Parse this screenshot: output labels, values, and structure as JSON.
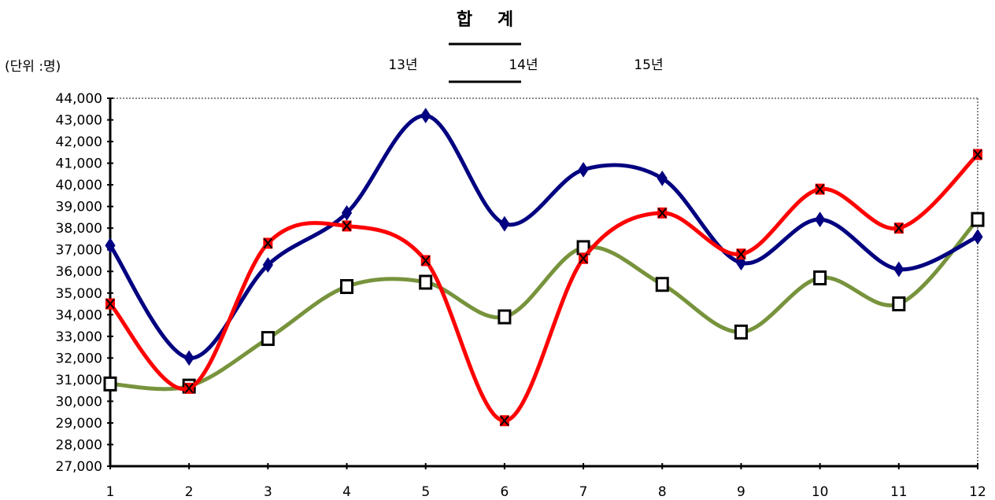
{
  "chart_data": {
    "type": "line",
    "title": "합 계",
    "unit_label": "(단위 :명)",
    "xlabel": "",
    "ylabel": "",
    "categories": [
      "1",
      "2",
      "3",
      "4",
      "5",
      "6",
      "7",
      "8",
      "9",
      "10",
      "11",
      "12"
    ],
    "ylim": [
      27000,
      44000
    ],
    "ystep": 1000,
    "grid": false,
    "legend_position": "top",
    "series": [
      {
        "name": "13년",
        "color": "#77933c",
        "marker": "square",
        "values": [
          30800,
          30700,
          32900,
          35300,
          35500,
          33900,
          37100,
          35400,
          33200,
          35700,
          34500,
          38400
        ]
      },
      {
        "name": "14년",
        "color": "#000080",
        "marker": "diamond",
        "values": [
          37200,
          32000,
          36300,
          38700,
          43200,
          38200,
          40700,
          40300,
          36400,
          38400,
          36100,
          37600
        ]
      },
      {
        "name": "15년",
        "color": "#ff0000",
        "marker": "x",
        "values": [
          34500,
          30600,
          37300,
          38100,
          36500,
          29100,
          36600,
          38700,
          36800,
          39800,
          38000,
          41400
        ]
      }
    ]
  }
}
